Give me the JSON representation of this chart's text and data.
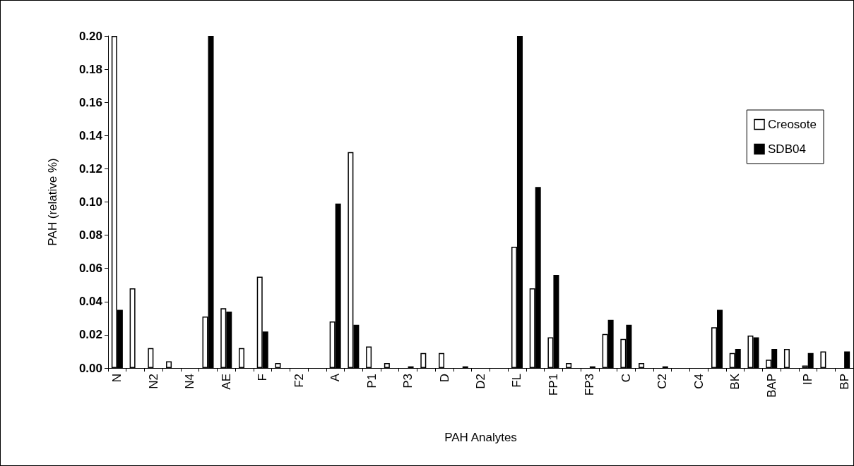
{
  "chart_data": {
    "type": "bar",
    "xlabel": "PAH Analytes",
    "ylabel": "PAH (relative %)",
    "categories": [
      "N",
      null,
      "N2",
      null,
      "N4",
      null,
      "AE",
      null,
      "F",
      null,
      "F2",
      null,
      "A",
      null,
      "P1",
      null,
      "P3",
      null,
      "D",
      null,
      "D2",
      null,
      "FL",
      null,
      "FP1",
      null,
      "FP3",
      null,
      "C",
      null,
      "C2",
      null,
      "C4",
      null,
      "BK",
      null,
      "BAP",
      null,
      "IP",
      null,
      "BP"
    ],
    "series": [
      {
        "name": "Creosote",
        "color": "#ffffff",
        "values": [
          0.2,
          0.048,
          0.012,
          0.004,
          null,
          0.031,
          0.036,
          0.012,
          0.055,
          0.003,
          null,
          null,
          0.028,
          0.13,
          0.013,
          0.003,
          null,
          0.009,
          0.009,
          null,
          null,
          null,
          0.073,
          0.048,
          0.0185,
          0.003,
          null,
          0.0205,
          0.0175,
          0.003,
          null,
          null,
          null,
          0.0245,
          0.009,
          0.0195,
          0.005,
          0.0115,
          0.0015,
          0.01,
          null
        ]
      },
      {
        "name": "SDB04",
        "color": "#000000",
        "values": [
          0.035,
          null,
          null,
          null,
          null,
          0.2,
          0.034,
          null,
          0.022,
          null,
          null,
          null,
          0.099,
          0.026,
          null,
          null,
          0.001,
          null,
          null,
          0.001,
          null,
          null,
          0.2,
          0.109,
          0.056,
          null,
          0.001,
          0.029,
          0.026,
          null,
          0.001,
          null,
          null,
          0.035,
          0.0115,
          0.0185,
          0.0115,
          null,
          0.009,
          null,
          0.01
        ]
      }
    ],
    "ylim": [
      0,
      0.2
    ],
    "yticks": [
      {
        "value": 0,
        "label": "0.00"
      },
      {
        "value": 0.02,
        "label": "0.02"
      },
      {
        "value": 0.04,
        "label": "0.04"
      },
      {
        "value": 0.06,
        "label": "0.06"
      },
      {
        "value": 0.08,
        "label": "0.08"
      },
      {
        "value": 0.1,
        "label": "0.10"
      },
      {
        "value": 0.12,
        "label": "0.12"
      },
      {
        "value": 0.14,
        "label": "0.14"
      },
      {
        "value": 0.16,
        "label": "0.16"
      },
      {
        "value": 0.18,
        "label": "0.18"
      },
      {
        "value": 0.2,
        "label": "0.20"
      }
    ],
    "legend": "right",
    "grid": false
  }
}
